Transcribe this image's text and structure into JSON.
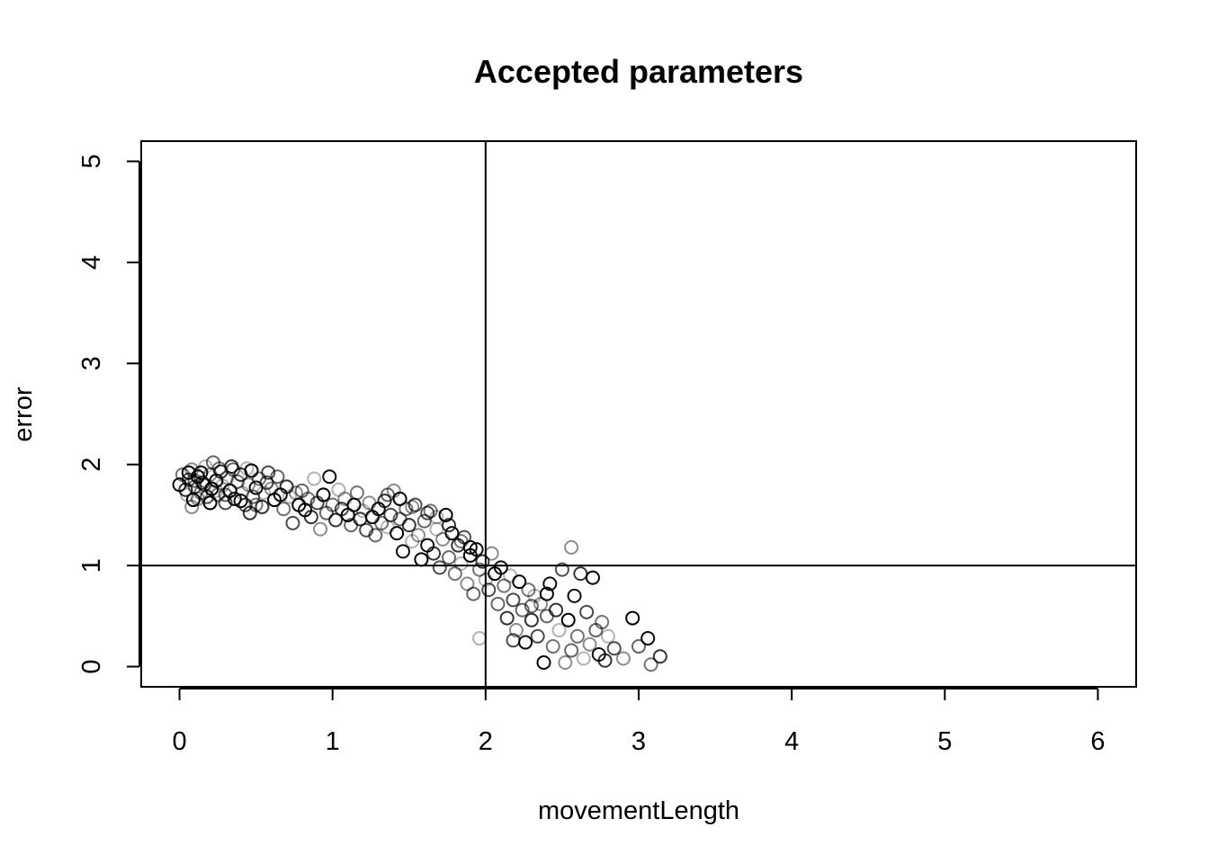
{
  "chart_data": {
    "type": "scatter",
    "title": "Accepted parameters",
    "xlabel": "movementLength",
    "ylabel": "error",
    "xlim": [
      -0.25,
      6.25
    ],
    "ylim": [
      -0.2,
      5.2
    ],
    "x_ticks": [
      0,
      1,
      2,
      3,
      4,
      5,
      6
    ],
    "y_ticks": [
      0,
      1,
      2,
      3,
      4,
      5
    ],
    "x_tick_labels": [
      "0",
      "1",
      "2",
      "3",
      "4",
      "5",
      "6"
    ],
    "y_tick_labels": [
      "0",
      "1",
      "2",
      "3",
      "4",
      "5"
    ],
    "reference_lines": {
      "vertical_x": 2,
      "horizontal_y": 1
    },
    "grid": false,
    "legend": "none",
    "marker": "open-circle",
    "color": "#000000",
    "series": [
      {
        "points": [
          [
            0.0,
            1.8
          ],
          [
            0.02,
            1.9
          ],
          [
            0.04,
            1.75
          ],
          [
            0.05,
            1.7
          ],
          [
            0.06,
            1.85
          ],
          [
            0.08,
            1.95
          ],
          [
            0.09,
            1.65
          ],
          [
            0.1,
            1.78
          ],
          [
            0.12,
            1.88
          ],
          [
            0.14,
            1.72
          ],
          [
            0.15,
            1.82
          ],
          [
            0.17,
            1.98
          ],
          [
            0.18,
            1.68
          ],
          [
            0.2,
            1.9
          ],
          [
            0.21,
            1.76
          ],
          [
            0.22,
            2.02
          ],
          [
            0.24,
            1.84
          ],
          [
            0.25,
            1.7
          ],
          [
            0.27,
            1.93
          ],
          [
            0.28,
            1.79
          ],
          [
            0.3,
            1.62
          ],
          [
            0.31,
            1.87
          ],
          [
            0.33,
            1.74
          ],
          [
            0.35,
            1.95
          ],
          [
            0.36,
            1.66
          ],
          [
            0.38,
            1.83
          ],
          [
            0.4,
            1.9
          ],
          [
            0.41,
            1.72
          ],
          [
            0.43,
            1.6
          ],
          [
            0.45,
            1.8
          ],
          [
            0.47,
            1.94
          ],
          [
            0.48,
            1.68
          ],
          [
            0.5,
            1.77
          ],
          [
            0.52,
            1.86
          ],
          [
            0.54,
            1.58
          ],
          [
            0.55,
            1.72
          ],
          [
            0.57,
            1.82
          ],
          [
            0.6,
            1.76
          ],
          [
            0.62,
            1.65
          ],
          [
            0.64,
            1.88
          ],
          [
            0.66,
            1.7
          ],
          [
            0.68,
            1.56
          ],
          [
            0.7,
            1.78
          ],
          [
            0.72,
            1.68
          ],
          [
            0.74,
            1.42
          ],
          [
            0.76,
            1.72
          ],
          [
            0.78,
            1.6
          ],
          [
            0.8,
            1.74
          ],
          [
            0.82,
            1.55
          ],
          [
            0.84,
            1.66
          ],
          [
            0.86,
            1.48
          ],
          [
            0.88,
            1.86
          ],
          [
            0.9,
            1.62
          ],
          [
            0.92,
            1.36
          ],
          [
            0.94,
            1.7
          ],
          [
            0.96,
            1.52
          ],
          [
            0.98,
            1.88
          ],
          [
            1.0,
            1.6
          ],
          [
            1.02,
            1.45
          ],
          [
            1.04,
            1.75
          ],
          [
            1.06,
            1.56
          ],
          [
            1.08,
            1.66
          ],
          [
            1.1,
            1.5
          ],
          [
            1.12,
            1.4
          ],
          [
            1.14,
            1.6
          ],
          [
            1.16,
            1.72
          ],
          [
            1.18,
            1.46
          ],
          [
            1.2,
            1.54
          ],
          [
            1.22,
            1.35
          ],
          [
            1.24,
            1.62
          ],
          [
            1.26,
            1.48
          ],
          [
            1.28,
            1.3
          ],
          [
            1.3,
            1.56
          ],
          [
            1.32,
            1.42
          ],
          [
            1.34,
            1.64
          ],
          [
            1.36,
            1.38
          ],
          [
            1.38,
            1.5
          ],
          [
            1.4,
            1.74
          ],
          [
            1.42,
            1.32
          ],
          [
            1.44,
            1.46
          ],
          [
            1.46,
            1.14
          ],
          [
            1.48,
            1.56
          ],
          [
            1.5,
            1.4
          ],
          [
            1.52,
            1.24
          ],
          [
            1.54,
            1.6
          ],
          [
            1.56,
            1.3
          ],
          [
            1.58,
            1.06
          ],
          [
            1.6,
            1.44
          ],
          [
            1.62,
            1.2
          ],
          [
            1.64,
            1.54
          ],
          [
            1.66,
            1.12
          ],
          [
            1.68,
            1.36
          ],
          [
            1.7,
            0.98
          ],
          [
            1.72,
            1.26
          ],
          [
            1.74,
            1.5
          ],
          [
            1.76,
            1.08
          ],
          [
            1.78,
            1.32
          ],
          [
            1.8,
            0.92
          ],
          [
            1.82,
            1.2
          ],
          [
            1.84,
            1.02
          ],
          [
            1.86,
            1.28
          ],
          [
            1.88,
            0.82
          ],
          [
            1.9,
            1.1
          ],
          [
            1.92,
            0.72
          ],
          [
            1.94,
            1.16
          ],
          [
            1.96,
            0.96
          ],
          [
            1.98,
            1.04
          ],
          [
            2.0,
            0.86
          ],
          [
            2.02,
            0.76
          ],
          [
            2.04,
            1.12
          ],
          [
            2.06,
            0.92
          ],
          [
            2.08,
            0.62
          ],
          [
            2.1,
            0.98
          ],
          [
            2.12,
            0.8
          ],
          [
            2.14,
            0.48
          ],
          [
            2.16,
            0.9
          ],
          [
            2.18,
            0.66
          ],
          [
            2.2,
            0.36
          ],
          [
            2.22,
            0.84
          ],
          [
            2.24,
            0.56
          ],
          [
            2.26,
            0.24
          ],
          [
            2.28,
            0.76
          ],
          [
            2.3,
            0.46
          ],
          [
            2.32,
            0.7
          ],
          [
            2.34,
            0.3
          ],
          [
            2.36,
            0.62
          ],
          [
            2.38,
            0.04
          ],
          [
            2.4,
            0.5
          ],
          [
            2.42,
            0.82
          ],
          [
            2.44,
            0.2
          ],
          [
            2.46,
            0.56
          ],
          [
            2.48,
            0.36
          ],
          [
            2.5,
            0.96
          ],
          [
            2.52,
            0.04
          ],
          [
            2.54,
            0.46
          ],
          [
            2.56,
            0.16
          ],
          [
            2.58,
            0.7
          ],
          [
            2.6,
            0.3
          ],
          [
            2.62,
            0.92
          ],
          [
            2.64,
            0.08
          ],
          [
            2.66,
            0.54
          ],
          [
            2.68,
            0.22
          ],
          [
            2.7,
            0.88
          ],
          [
            2.72,
            0.36
          ],
          [
            2.74,
            0.12
          ],
          [
            2.76,
            0.44
          ],
          [
            2.78,
            0.06
          ],
          [
            2.8,
            0.3
          ],
          [
            2.84,
            0.18
          ],
          [
            2.9,
            0.08
          ],
          [
            2.96,
            0.48
          ],
          [
            3.0,
            0.2
          ],
          [
            3.06,
            0.28
          ],
          [
            3.08,
            0.02
          ],
          [
            3.14,
            0.1
          ],
          [
            1.96,
            0.28
          ],
          [
            2.18,
            0.26
          ],
          [
            2.56,
            1.18
          ],
          [
            2.4,
            0.72
          ],
          [
            2.3,
            0.6
          ],
          [
            1.9,
            1.18
          ],
          [
            1.84,
            1.24
          ],
          [
            1.76,
            1.4
          ],
          [
            1.68,
            1.48
          ],
          [
            1.62,
            1.52
          ],
          [
            1.52,
            1.58
          ],
          [
            1.44,
            1.66
          ],
          [
            1.36,
            1.7
          ],
          [
            0.14,
            1.92
          ],
          [
            0.26,
            1.96
          ],
          [
            0.34,
            1.98
          ],
          [
            0.44,
            1.96
          ],
          [
            0.58,
            1.92
          ],
          [
            0.12,
            1.66
          ],
          [
            0.2,
            1.62
          ],
          [
            0.3,
            1.7
          ],
          [
            0.4,
            1.64
          ],
          [
            0.5,
            1.6
          ],
          [
            0.46,
            1.52
          ],
          [
            0.24,
            1.74
          ],
          [
            0.16,
            1.8
          ],
          [
            0.08,
            1.58
          ],
          [
            0.06,
            1.92
          ],
          [
            0.1,
            1.84
          ]
        ]
      }
    ]
  }
}
